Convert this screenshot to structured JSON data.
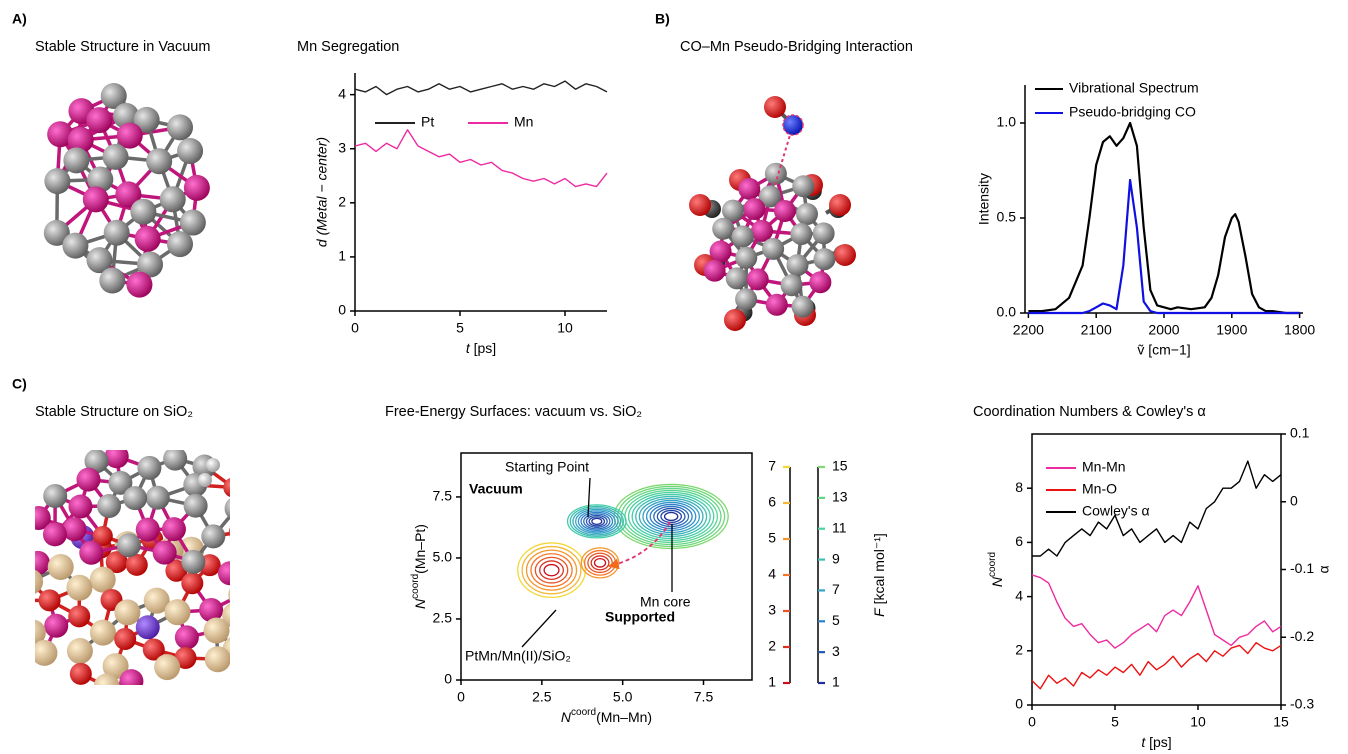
{
  "panels": [
    {
      "label": "A)",
      "title": "Stable Structure in Vacuum"
    },
    {
      "label": "B)",
      "title": "CO–Mn Pseudo-Bridging Interaction"
    },
    {
      "label": "C)",
      "title": "Stable Structure on SiO₂"
    }
  ],
  "chart_data": [
    {
      "type": "line",
      "title": "Mn Segregation",
      "xlabel": [
        "t",
        " [ps]"
      ],
      "ylabel": "d (Metal − center)",
      "x": [
        0,
        0.5,
        1,
        1.5,
        2,
        2.5,
        3,
        3.5,
        4,
        4.5,
        5,
        5.5,
        6,
        6.5,
        7,
        7.5,
        8,
        8.5,
        9,
        9.5,
        10,
        10.5,
        11,
        11.5,
        12
      ],
      "series": [
        {
          "name": "Pt",
          "color": "#222222",
          "values": [
            4.1,
            4.05,
            4.15,
            4.0,
            4.1,
            4.15,
            4.05,
            4.1,
            4.2,
            4.1,
            4.15,
            4.05,
            4.1,
            4.15,
            4.2,
            4.1,
            4.15,
            4.1,
            4.2,
            4.15,
            4.25,
            4.1,
            4.2,
            4.15,
            4.05
          ]
        },
        {
          "name": "Mn",
          "color": "#ee2aa0",
          "values": [
            3.05,
            3.1,
            2.95,
            3.1,
            3.0,
            3.35,
            3.05,
            2.95,
            2.85,
            2.9,
            2.75,
            2.8,
            2.7,
            2.75,
            2.6,
            2.55,
            2.45,
            2.4,
            2.45,
            2.35,
            2.45,
            2.3,
            2.35,
            2.3,
            2.55
          ]
        }
      ],
      "xlim": [
        0,
        12
      ],
      "ylim": [
        0,
        4.4
      ],
      "xticks": [
        0,
        5,
        10
      ],
      "yticks": [
        0,
        1,
        2,
        3,
        4
      ],
      "legend": "upper center"
    },
    {
      "type": "line",
      "xlabel": "ṽ [cm−1]",
      "ylabel": "Intensity",
      "x": [
        2200,
        2180,
        2160,
        2140,
        2120,
        2110,
        2100,
        2090,
        2080,
        2070,
        2060,
        2050,
        2040,
        2030,
        2020,
        2010,
        2000,
        1990,
        1980,
        1960,
        1940,
        1930,
        1920,
        1910,
        1900,
        1895,
        1890,
        1880,
        1870,
        1860,
        1850,
        1840,
        1820,
        1800
      ],
      "series": [
        {
          "name": "Vibrational Spectrum",
          "color": "#000000",
          "values": [
            0.01,
            0.01,
            0.02,
            0.08,
            0.25,
            0.5,
            0.78,
            0.9,
            0.93,
            0.88,
            0.92,
            1.0,
            0.88,
            0.45,
            0.12,
            0.04,
            0.03,
            0.02,
            0.03,
            0.02,
            0.03,
            0.08,
            0.2,
            0.4,
            0.5,
            0.52,
            0.48,
            0.3,
            0.1,
            0.03,
            0.01,
            0.01,
            0.0,
            0.0
          ]
        },
        {
          "name": "Pseudo-bridging CO",
          "color": "#1010e0",
          "values": [
            0,
            0,
            0,
            0,
            0,
            0.01,
            0.03,
            0.05,
            0.04,
            0.02,
            0.25,
            0.7,
            0.45,
            0.06,
            0.01,
            0,
            0,
            0,
            0,
            0,
            0,
            0,
            0,
            0,
            0,
            0,
            0,
            0,
            0,
            0,
            0,
            0,
            0,
            0
          ]
        }
      ],
      "xlim": [
        2205,
        1795
      ],
      "ylim": [
        0,
        1.2
      ],
      "xticks": [
        2200,
        2100,
        2000,
        1900,
        1800
      ],
      "yticks": [
        {
          "value": 0,
          "label": "0.0"
        },
        {
          "value": 0.5,
          "label": "0.5"
        },
        {
          "value": 1,
          "label": "1.0"
        }
      ],
      "legend": "upper right"
    },
    {
      "type": "contour",
      "title": "Free-Energy Surfaces: vacuum vs. SiO₂",
      "xlabel": [
        "N",
        "coord",
        "(Mn–Mn)"
      ],
      "ylabel": [
        "N",
        "coord",
        "(Mn–Pt)"
      ],
      "xlim": [
        0,
        9
      ],
      "ylim": [
        0,
        9.3
      ],
      "xticks": [
        0,
        2.5,
        {
          "value": 5,
          "label": "5.0"
        },
        7.5
      ],
      "yticks": [
        0,
        2.5,
        {
          "value": 5,
          "label": "5.0"
        },
        7.5
      ],
      "series": [
        {
          "name": "Vacuum",
          "color": "#1a9fc0",
          "x": [
            6.5,
            4.2
          ],
          "y": [
            6.7,
            6.5
          ],
          "levels": [
            1,
            2,
            3,
            4,
            5,
            6,
            7,
            8,
            9,
            10,
            11,
            12,
            13,
            14,
            15
          ],
          "colormap": [
            "#1e2f9a",
            "#2f8fd0",
            "#46d1a6",
            "#7fd870"
          ]
        },
        {
          "name": "Supported",
          "color": "#f2401c",
          "x": [
            2.8,
            4.3
          ],
          "y": [
            4.5,
            4.8
          ],
          "levels": [
            1,
            2,
            3,
            4,
            5,
            6,
            7
          ],
          "colormap": [
            "#c8101c",
            "#f5772a",
            "#f2d83a"
          ]
        }
      ],
      "colorbars": [
        {
          "ticks": [
            1,
            3,
            5,
            7,
            9,
            11,
            13,
            15
          ],
          "lim": [
            1,
            15
          ]
        },
        {
          "ticks": [
            1,
            2,
            3,
            4,
            5,
            6,
            7
          ],
          "lim": [
            1,
            7
          ]
        }
      ],
      "colorbar_label": [
        "F",
        " [kcal mol⁻¹]"
      ],
      "annotations": [
        "Starting Point",
        "Mn core",
        "PtMn/Mn(II)/SiO₂"
      ]
    },
    {
      "type": "line",
      "title": "Coordination Numbers & Cowley's α",
      "xlabel": [
        "t",
        " [ps]"
      ],
      "ylabel": [
        "N",
        "coord"
      ],
      "y2label": "α",
      "x": [
        0,
        0.5,
        1,
        1.5,
        2,
        2.5,
        3,
        3.5,
        4,
        4.5,
        5,
        5.5,
        6,
        6.5,
        7,
        7.5,
        8,
        8.5,
        9,
        9.5,
        10,
        10.5,
        11,
        11.5,
        12,
        12.5,
        13,
        13.5,
        14,
        14.5,
        15
      ],
      "series": [
        {
          "name": "Mn-Mn",
          "color": "#ee2aa0",
          "values": [
            4.8,
            4.7,
            4.5,
            3.8,
            3.2,
            2.9,
            3.0,
            2.6,
            2.3,
            2.4,
            2.1,
            2.3,
            2.6,
            2.8,
            3.0,
            2.7,
            3.3,
            3.5,
            3.3,
            3.8,
            4.4,
            3.5,
            2.6,
            2.4,
            2.2,
            2.5,
            2.6,
            2.9,
            3.1,
            2.7,
            2.9
          ]
        },
        {
          "name": "Mn-O",
          "color": "#ee1111",
          "values": [
            0.9,
            0.6,
            1.1,
            0.8,
            1.0,
            0.7,
            1.2,
            1.0,
            1.3,
            1.1,
            1.4,
            1.2,
            1.5,
            1.1,
            1.6,
            1.3,
            1.5,
            1.8,
            1.4,
            1.7,
            1.9,
            1.6,
            2.0,
            1.8,
            2.1,
            2.2,
            1.9,
            2.3,
            2.1,
            2.0,
            2.2
          ]
        },
        {
          "name": "Cowley's α",
          "color": "#000000",
          "axis": "y2",
          "values": [
            -0.08,
            -0.08,
            -0.07,
            -0.08,
            -0.06,
            -0.05,
            -0.04,
            -0.05,
            -0.03,
            -0.04,
            -0.02,
            -0.05,
            -0.04,
            -0.06,
            -0.05,
            -0.04,
            -0.06,
            -0.05,
            -0.06,
            -0.03,
            -0.04,
            -0.01,
            0.0,
            0.02,
            0.02,
            0.03,
            0.06,
            0.02,
            0.04,
            0.03,
            0.04
          ]
        }
      ],
      "xlim": [
        0,
        15
      ],
      "ylim": [
        0,
        10
      ],
      "y2lim": [
        -0.3,
        0.1
      ],
      "xticks": [
        0,
        5,
        10,
        15
      ],
      "yticks": [
        0,
        2,
        4,
        6,
        8
      ],
      "y2ticks": [
        -0.3,
        -0.2,
        -0.1,
        0,
        0.1
      ],
      "legend": "upper left"
    }
  ]
}
